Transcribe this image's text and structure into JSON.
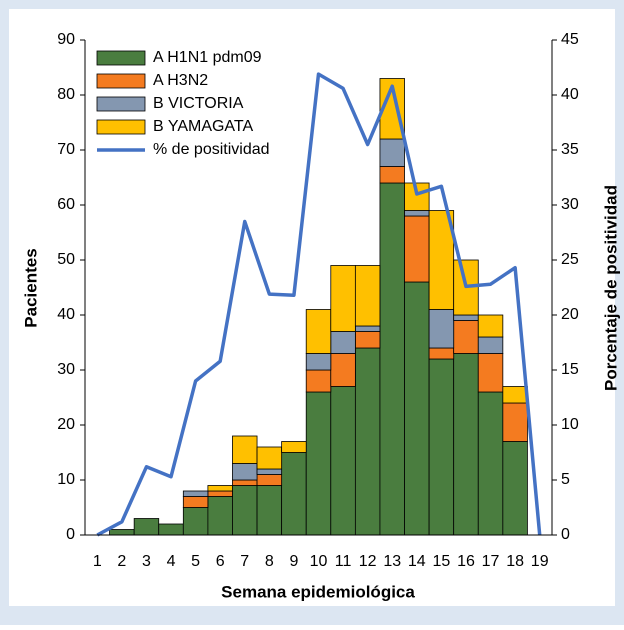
{
  "chart_data": {
    "type": "bar",
    "stacked": true,
    "x_label": "Semana epidemiológica",
    "y_label": "Pacientes",
    "y2_label": "Porcentaje de positividad",
    "categories": [
      "1",
      "2",
      "3",
      "4",
      "5",
      "6",
      "7",
      "8",
      "9",
      "10",
      "11",
      "12",
      "13",
      "14",
      "15",
      "16",
      "17",
      "18",
      "19"
    ],
    "series": [
      {
        "name": "A H1N1 pdm09",
        "color": "#4a7d3f",
        "values": [
          0,
          1,
          3,
          2,
          5,
          7,
          9,
          9,
          15,
          26,
          27,
          34,
          64,
          46,
          32,
          33,
          26,
          17,
          0
        ]
      },
      {
        "name": "A H3N2",
        "color": "#f47b20",
        "values": [
          0,
          0,
          0,
          0,
          2,
          1,
          1,
          2,
          0,
          4,
          6,
          3,
          3,
          12,
          2,
          6,
          7,
          7,
          0
        ]
      },
      {
        "name": "B VICTORIA",
        "color": "#8497b0",
        "values": [
          0,
          0,
          0,
          0,
          1,
          0,
          3,
          1,
          0,
          3,
          4,
          1,
          5,
          1,
          7,
          1,
          3,
          0,
          0
        ]
      },
      {
        "name": "B YAMAGATA",
        "color": "#ffc000",
        "values": [
          0,
          0,
          0,
          0,
          0,
          1,
          5,
          4,
          2,
          8,
          12,
          11,
          11,
          5,
          18,
          10,
          4,
          3,
          0
        ]
      },
      {
        "name": "% de positividad",
        "color": "#4472c4",
        "type": "line",
        "axis": "y2",
        "values": [
          0,
          1.2,
          6.2,
          5.3,
          14,
          15.8,
          28.5,
          21.9,
          21.8,
          41.9,
          40.6,
          35.5,
          40.8,
          31,
          31.7,
          22.6,
          22.8,
          24.3,
          0
        ]
      }
    ],
    "ylim": [
      0,
      90
    ],
    "yticks": [
      0,
      10,
      20,
      30,
      40,
      50,
      60,
      70,
      80,
      90
    ],
    "y2lim": [
      0,
      45
    ],
    "y2ticks": [
      0,
      5,
      10,
      15,
      20,
      25,
      30,
      35,
      40,
      45
    ],
    "legend": "top-left"
  }
}
